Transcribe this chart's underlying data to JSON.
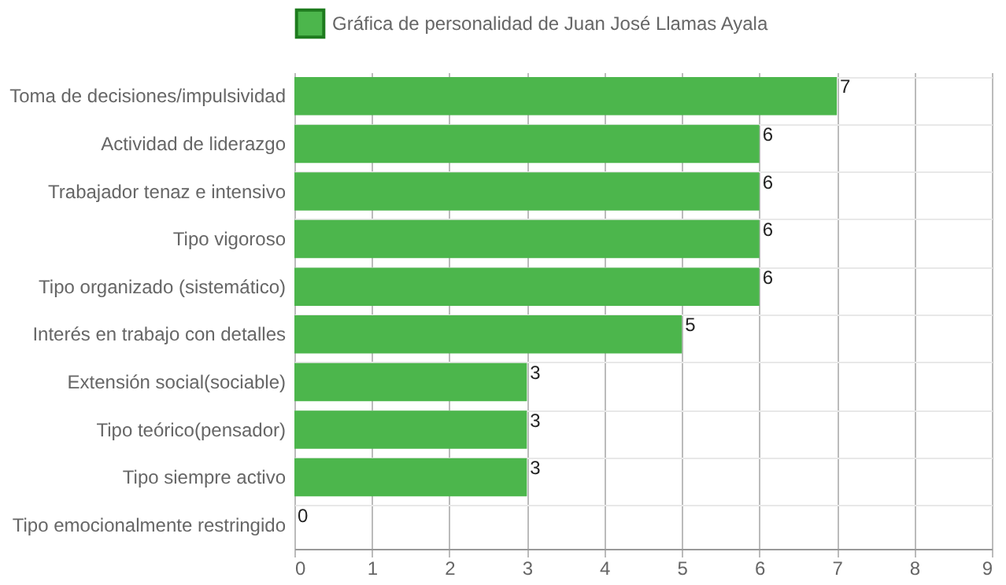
{
  "chart_data": {
    "type": "bar",
    "orientation": "horizontal",
    "categories": [
      "Toma de decisiones/impulsividad",
      "Actividad de liderazgo",
      "Trabajador tenaz e intensivo",
      "Tipo vigoroso",
      "Tipo organizado (sistemático)",
      "Interés en trabajo con detalles",
      "Extensión social(sociable)",
      "Tipo teórico(pensador)",
      "Tipo siempre activo",
      "Tipo emocionalmente restringido"
    ],
    "series": [
      {
        "name": "Gráfica de personalidad de Juan José Llamas Ayala",
        "color": "#4cb64c",
        "values": [
          7,
          6,
          6,
          6,
          6,
          5,
          3,
          3,
          3,
          0
        ]
      }
    ],
    "xlim": [
      0,
      9
    ],
    "xticks": [
      0,
      1,
      2,
      3,
      4,
      5,
      6,
      7,
      8,
      9
    ],
    "grid": true,
    "legend": "top",
    "data_labels": true
  }
}
